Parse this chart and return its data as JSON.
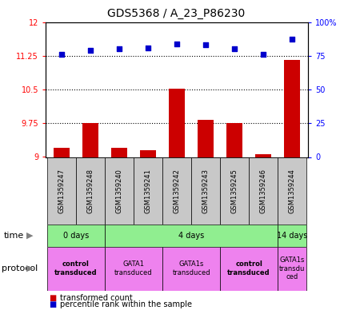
{
  "title": "GDS5368 / A_23_P86230",
  "samples": [
    "GSM1359247",
    "GSM1359248",
    "GSM1359240",
    "GSM1359241",
    "GSM1359242",
    "GSM1359243",
    "GSM1359245",
    "GSM1359246",
    "GSM1359244"
  ],
  "bar_values": [
    9.2,
    9.75,
    9.2,
    9.15,
    10.52,
    9.82,
    9.75,
    9.07,
    11.15
  ],
  "scatter_values": [
    76,
    79,
    80,
    81,
    84,
    83,
    80,
    76,
    87
  ],
  "ylim_left": [
    9.0,
    12.0
  ],
  "ylim_right": [
    0,
    100
  ],
  "yticks_left": [
    9.0,
    9.75,
    10.5,
    11.25,
    12.0
  ],
  "ytick_labels_left": [
    "9",
    "9.75",
    "10.5",
    "11.25",
    "12"
  ],
  "yticks_right": [
    0,
    25,
    50,
    75,
    100
  ],
  "ytick_labels_right": [
    "0",
    "25",
    "50",
    "75",
    "100%"
  ],
  "hlines": [
    9.75,
    10.5,
    11.25
  ],
  "bar_color": "#cc0000",
  "scatter_color": "#0000cc",
  "bar_bottom": 9.0,
  "sample_box_color": "#c8c8c8",
  "time_groups": [
    {
      "label": "0 days",
      "start": 0,
      "end": 2,
      "color": "#90ee90"
    },
    {
      "label": "4 days",
      "start": 2,
      "end": 8,
      "color": "#90ee90"
    },
    {
      "label": "14 days",
      "start": 8,
      "end": 9,
      "color": "#90ee90"
    }
  ],
  "protocol_groups": [
    {
      "label": "control\ntransduced",
      "start": 0,
      "end": 2,
      "color": "#ee82ee",
      "bold": true
    },
    {
      "label": "GATA1\ntransduced",
      "start": 2,
      "end": 4,
      "color": "#ee82ee",
      "bold": false
    },
    {
      "label": "GATA1s\ntransduced",
      "start": 4,
      "end": 6,
      "color": "#ee82ee",
      "bold": false
    },
    {
      "label": "control\ntransduced",
      "start": 6,
      "end": 8,
      "color": "#ee82ee",
      "bold": true
    },
    {
      "label": "GATA1s\ntransdu\nced",
      "start": 8,
      "end": 9,
      "color": "#ee82ee",
      "bold": false
    }
  ],
  "background_color": "#ffffff",
  "title_fontsize": 10,
  "tick_fontsize": 7,
  "sample_fontsize": 6,
  "row_fontsize": 7,
  "legend_fontsize": 7
}
